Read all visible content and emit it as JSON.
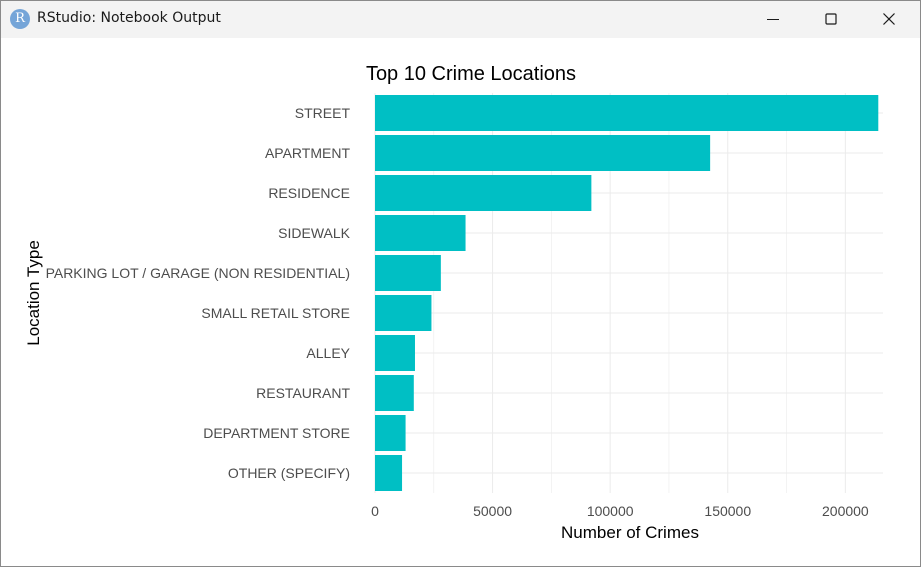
{
  "window": {
    "title": "RStudio: Notebook Output",
    "icon_glyph": "R",
    "icon": "rstudio-icon",
    "controls": [
      "minimize-icon",
      "maximize-icon",
      "close-icon"
    ]
  },
  "chart_data": {
    "type": "bar",
    "orientation": "horizontal",
    "title": "Top 10 Crime Locations",
    "xlabel": "Number of Crimes",
    "ylabel": "Location Type",
    "categories": [
      "STREET",
      "APARTMENT",
      "RESIDENCE",
      "SIDEWALK",
      "PARKING LOT / GARAGE (NON RESIDENTIAL)",
      "SMALL RETAIL STORE",
      "ALLEY",
      "RESTAURANT",
      "DEPARTMENT STORE",
      "OTHER (SPECIFY)"
    ],
    "values": [
      214000,
      142500,
      92000,
      38500,
      28000,
      24000,
      17000,
      16500,
      13000,
      11500
    ],
    "xlim": [
      0,
      216000
    ],
    "xticks": [
      0,
      50000,
      100000,
      150000,
      200000
    ],
    "xtick_labels": [
      "0",
      "50000",
      "100000",
      "150000",
      "200000"
    ],
    "grid": true,
    "bar_color": "#00BFC4",
    "grid_color": "#ebebeb",
    "text_color": "#4d4d4d"
  }
}
